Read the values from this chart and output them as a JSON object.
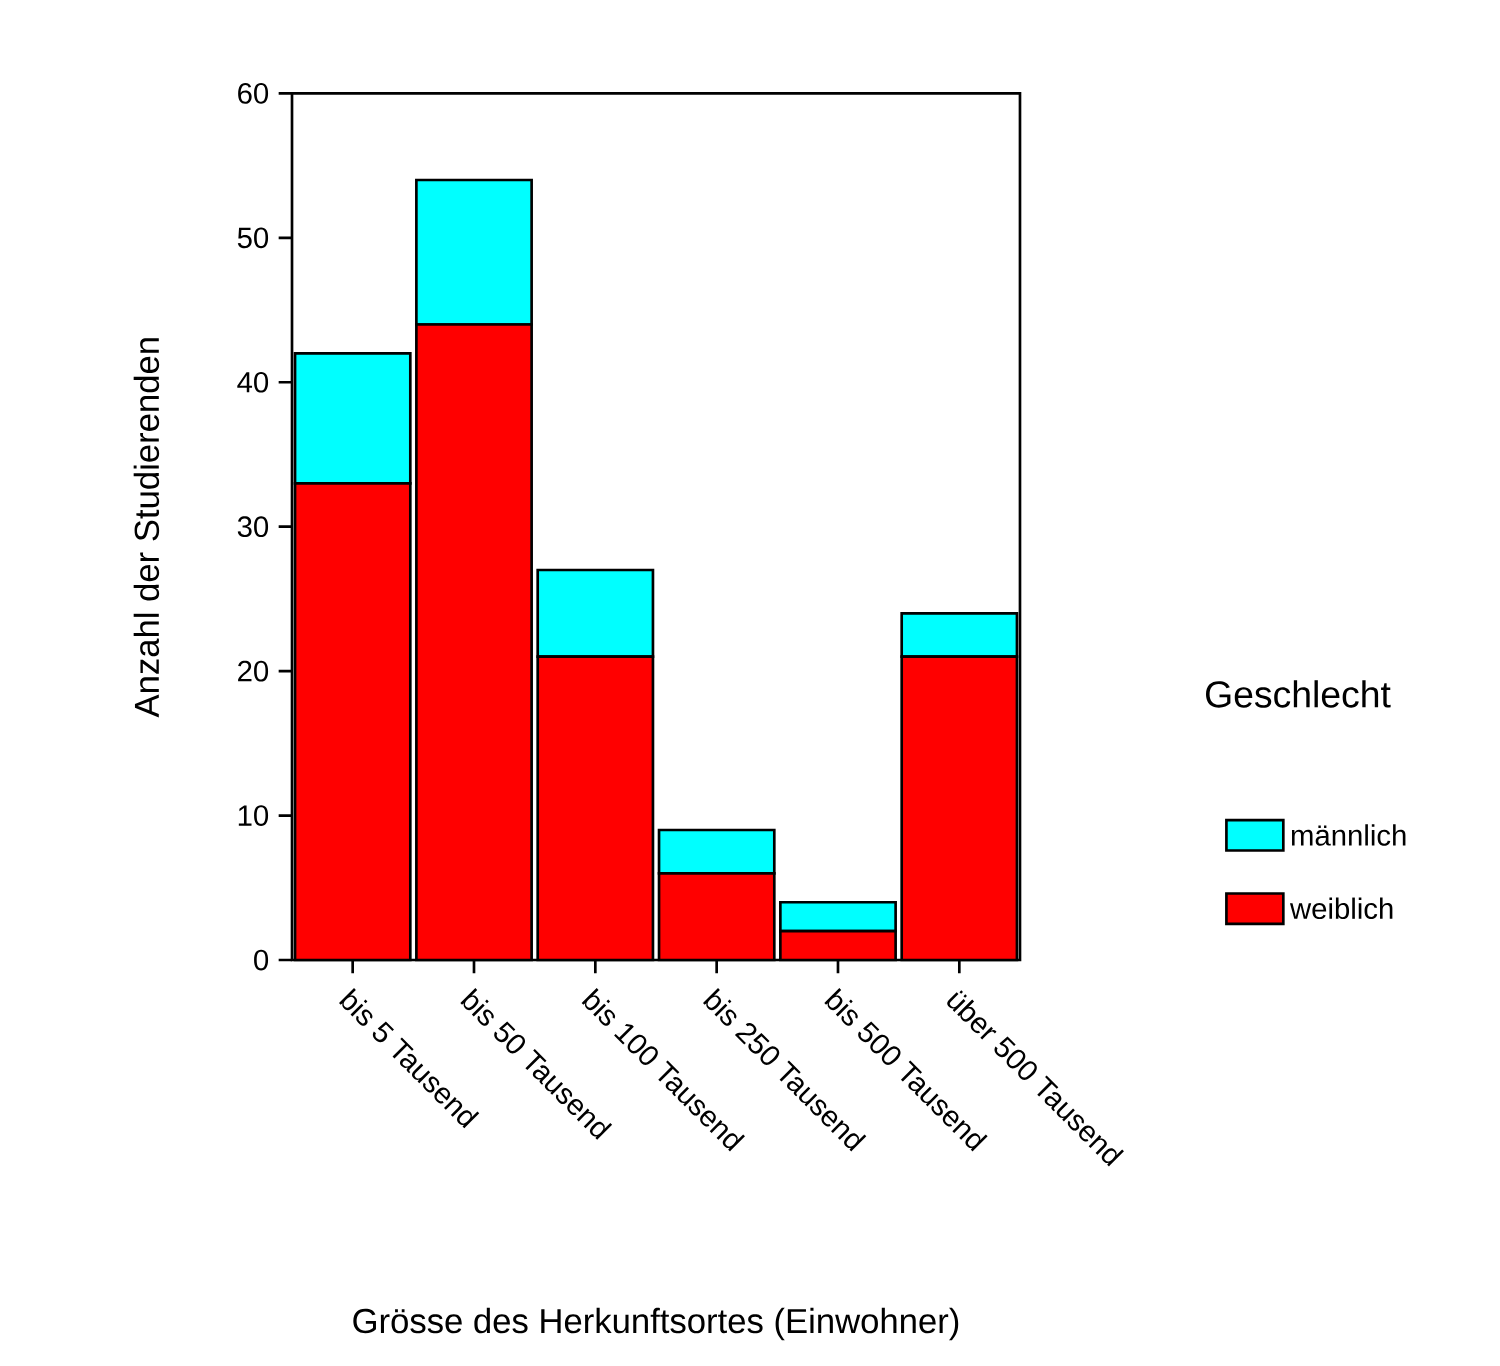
{
  "chart_data": {
    "type": "bar",
    "stacked": true,
    "xlabel": "Grösse des Herkunftsortes (Einwohner)",
    "ylabel": "Anzahl der Studierenden",
    "legend_title": "Geschlecht",
    "categories": [
      "bis 5 Tausend",
      "bis 50 Tausend",
      "bis 100 Tausend",
      "bis 250 Tausend",
      "bis 500 Tausend",
      "über 500 Tausend"
    ],
    "series": [
      {
        "name": "weiblich",
        "color": "#ff0000",
        "values": [
          33,
          44,
          21,
          6,
          2,
          21
        ]
      },
      {
        "name": "männlich",
        "color": "#00ffff",
        "values": [
          9,
          10,
          6,
          3,
          2,
          3
        ]
      }
    ],
    "ylim": [
      0,
      60
    ],
    "yticks": [
      0,
      10,
      20,
      30,
      40,
      50,
      60
    ],
    "legend": "right"
  }
}
